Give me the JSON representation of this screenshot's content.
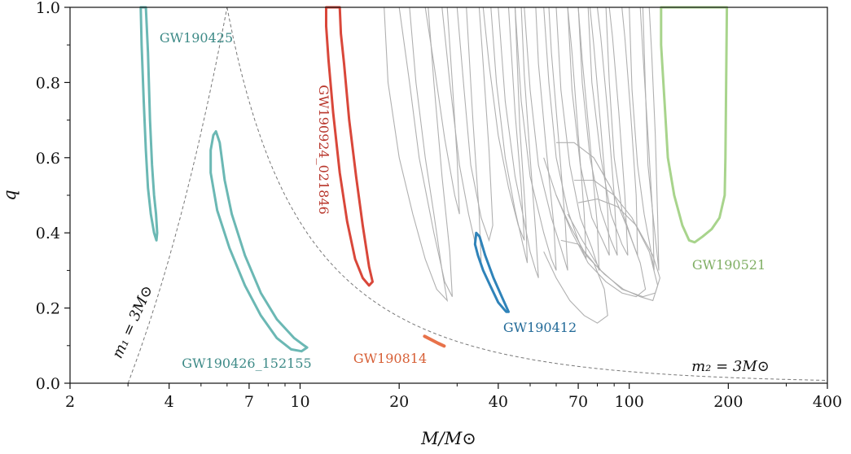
{
  "chart_data": {
    "type": "line",
    "title": "",
    "xlabel": "M/M⊙",
    "ylabel": "q",
    "xscale": "log",
    "xlim": [
      2,
      400
    ],
    "ylim": [
      0,
      1
    ],
    "xticks": [
      {
        "value": 2,
        "label": "2"
      },
      {
        "value": 4,
        "label": "4"
      },
      {
        "value": 7,
        "label": "7"
      },
      {
        "value": 10,
        "label": "10"
      },
      {
        "value": 20,
        "label": "20"
      },
      {
        "value": 40,
        "label": "40"
      },
      {
        "value": 70,
        "label": "70"
      },
      {
        "value": 100,
        "label": "100"
      },
      {
        "value": 200,
        "label": "200"
      },
      {
        "value": 400,
        "label": "400"
      }
    ],
    "yticks": [
      {
        "value": 0.0,
        "label": "0.0"
      },
      {
        "value": 0.2,
        "label": "0.2"
      },
      {
        "value": 0.4,
        "label": "0.4"
      },
      {
        "value": 0.6,
        "label": "0.6"
      },
      {
        "value": 0.8,
        "label": "0.8"
      },
      {
        "value": 1.0,
        "label": "1.0"
      }
    ],
    "bounds": [
      {
        "name": "m1",
        "label": "m₁ = 3M⊙",
        "mass_limit": 3
      },
      {
        "name": "m2",
        "label": "m₂ = 3M⊙",
        "mass_limit": 3
      }
    ],
    "highlighted": [
      {
        "label": "GW190425",
        "color": "#6bb8b4",
        "points": [
          [
            3.3,
            1.0
          ],
          [
            3.4,
            1.0
          ],
          [
            3.45,
            0.88
          ],
          [
            3.5,
            0.7
          ],
          [
            3.55,
            0.58
          ],
          [
            3.6,
            0.5
          ],
          [
            3.65,
            0.45
          ],
          [
            3.68,
            0.4
          ],
          [
            3.66,
            0.38
          ],
          [
            3.6,
            0.4
          ],
          [
            3.52,
            0.45
          ],
          [
            3.45,
            0.52
          ],
          [
            3.4,
            0.62
          ],
          [
            3.35,
            0.75
          ],
          [
            3.3,
            0.9
          ],
          [
            3.28,
            1.0
          ]
        ]
      },
      {
        "label": "GW190426_152155",
        "color": "#6bb8b4",
        "points": [
          [
            5.55,
            0.67
          ],
          [
            5.7,
            0.64
          ],
          [
            5.9,
            0.54
          ],
          [
            6.2,
            0.45
          ],
          [
            6.8,
            0.34
          ],
          [
            7.6,
            0.24
          ],
          [
            8.5,
            0.17
          ],
          [
            9.6,
            0.12
          ],
          [
            10.3,
            0.1
          ],
          [
            10.5,
            0.095
          ],
          [
            10.1,
            0.085
          ],
          [
            9.4,
            0.09
          ],
          [
            8.5,
            0.12
          ],
          [
            7.6,
            0.18
          ],
          [
            6.8,
            0.26
          ],
          [
            6.1,
            0.36
          ],
          [
            5.6,
            0.46
          ],
          [
            5.35,
            0.56
          ],
          [
            5.35,
            0.62
          ],
          [
            5.45,
            0.66
          ]
        ]
      },
      {
        "label": "GW190924_021846",
        "color": "#d9473a",
        "points": [
          [
            12.0,
            1.0
          ],
          [
            13.2,
            1.0
          ],
          [
            13.3,
            0.93
          ],
          [
            13.6,
            0.85
          ],
          [
            14.1,
            0.7
          ],
          [
            14.8,
            0.55
          ],
          [
            15.5,
            0.42
          ],
          [
            16.2,
            0.31
          ],
          [
            16.6,
            0.27
          ],
          [
            16.2,
            0.26
          ],
          [
            15.5,
            0.28
          ],
          [
            14.7,
            0.33
          ],
          [
            13.9,
            0.43
          ],
          [
            13.2,
            0.56
          ],
          [
            12.6,
            0.72
          ],
          [
            12.2,
            0.86
          ],
          [
            12.0,
            0.95
          ]
        ]
      },
      {
        "label": "GW190412",
        "color": "#2f83b9",
        "points": [
          [
            34.0,
            0.37
          ],
          [
            34.3,
            0.4
          ],
          [
            35.1,
            0.39
          ],
          [
            36.5,
            0.34
          ],
          [
            38.7,
            0.28
          ],
          [
            41.0,
            0.23
          ],
          [
            43.0,
            0.19
          ],
          [
            42.3,
            0.19
          ],
          [
            40.0,
            0.215
          ],
          [
            37.8,
            0.26
          ],
          [
            36.0,
            0.3
          ],
          [
            34.7,
            0.34
          ]
        ]
      },
      {
        "label": "GW190814",
        "color": "#e8724a",
        "points": [
          [
            23.9,
            0.125
          ],
          [
            25.0,
            0.116
          ],
          [
            26.3,
            0.106
          ],
          [
            27.4,
            0.099
          ]
        ]
      },
      {
        "label": "GW190521",
        "color": "#a8d48c",
        "points": [
          [
            125,
            1.0
          ],
          [
            198,
            1.0
          ],
          [
            197,
            0.8
          ],
          [
            196,
            0.6
          ],
          [
            195,
            0.5
          ],
          [
            188,
            0.44
          ],
          [
            178,
            0.41
          ],
          [
            167,
            0.39
          ],
          [
            158,
            0.375
          ],
          [
            152,
            0.38
          ],
          [
            145,
            0.42
          ],
          [
            137,
            0.5
          ],
          [
            131,
            0.6
          ],
          [
            128,
            0.75
          ],
          [
            125,
            0.9
          ]
        ]
      }
    ],
    "background_events": [
      [
        [
          18,
          1.0
        ],
        [
          18.5,
          0.8
        ],
        [
          20,
          0.6
        ],
        [
          22,
          0.45
        ],
        [
          24,
          0.33
        ],
        [
          26,
          0.25
        ],
        [
          28,
          0.22
        ],
        [
          27,
          0.3
        ],
        [
          25.5,
          0.45
        ],
        [
          24,
          0.6
        ],
        [
          22.5,
          0.8
        ],
        [
          21.5,
          1.0
        ]
      ],
      [
        [
          20,
          1.0
        ],
        [
          21.5,
          0.8
        ],
        [
          23,
          0.6
        ],
        [
          25.5,
          0.4
        ],
        [
          27.5,
          0.27
        ],
        [
          29,
          0.23
        ],
        [
          28.5,
          0.35
        ],
        [
          27,
          0.55
        ],
        [
          25.5,
          0.8
        ],
        [
          24.5,
          1.0
        ]
      ],
      [
        [
          24,
          1.0
        ],
        [
          25.5,
          0.85
        ],
        [
          27.5,
          0.65
        ],
        [
          29.5,
          0.5
        ],
        [
          30.5,
          0.45
        ],
        [
          30,
          0.6
        ],
        [
          29,
          0.8
        ],
        [
          28,
          1.0
        ]
      ],
      [
        [
          27,
          1.0
        ],
        [
          28.5,
          0.8
        ],
        [
          30.5,
          0.58
        ],
        [
          32.5,
          0.45
        ],
        [
          34.5,
          0.35
        ],
        [
          35.5,
          0.32
        ],
        [
          35,
          0.45
        ],
        [
          33.5,
          0.7
        ],
        [
          32,
          1.0
        ]
      ],
      [
        [
          30,
          1.0
        ],
        [
          31.5,
          0.78
        ],
        [
          33,
          0.58
        ],
        [
          35.5,
          0.44
        ],
        [
          37.5,
          0.38
        ],
        [
          38.5,
          0.42
        ],
        [
          37.5,
          0.62
        ],
        [
          36,
          0.85
        ],
        [
          35,
          1.0
        ]
      ],
      [
        [
          36,
          1.0
        ],
        [
          37.5,
          0.85
        ],
        [
          40,
          0.66
        ],
        [
          43,
          0.52
        ],
        [
          46,
          0.42
        ],
        [
          48,
          0.38
        ],
        [
          47,
          0.52
        ],
        [
          45,
          0.72
        ],
        [
          43,
          1.0
        ]
      ],
      [
        [
          38,
          1.0
        ],
        [
          39.5,
          0.8
        ],
        [
          42,
          0.6
        ],
        [
          45,
          0.46
        ],
        [
          47.5,
          0.37
        ],
        [
          49,
          0.32
        ],
        [
          48.5,
          0.44
        ],
        [
          46.5,
          0.68
        ],
        [
          45,
          1.0
        ]
      ],
      [
        [
          40,
          1.0
        ],
        [
          42,
          0.75
        ],
        [
          45,
          0.55
        ],
        [
          48,
          0.43
        ],
        [
          50,
          0.35
        ],
        [
          52,
          0.3
        ],
        [
          53,
          0.28
        ],
        [
          52,
          0.4
        ],
        [
          50,
          0.6
        ],
        [
          48,
          0.82
        ],
        [
          47,
          1.0
        ]
      ],
      [
        [
          45,
          1.0
        ],
        [
          47,
          0.75
        ],
        [
          50,
          0.55
        ],
        [
          55,
          0.4
        ],
        [
          58,
          0.33
        ],
        [
          60,
          0.3
        ],
        [
          59,
          0.42
        ],
        [
          56,
          0.62
        ],
        [
          53,
          0.85
        ],
        [
          52,
          1.0
        ]
      ],
      [
        [
          48,
          1.0
        ],
        [
          50,
          0.78
        ],
        [
          53,
          0.58
        ],
        [
          58,
          0.44
        ],
        [
          62,
          0.36
        ],
        [
          65,
          0.3
        ],
        [
          64,
          0.42
        ],
        [
          61,
          0.65
        ],
        [
          58,
          0.88
        ],
        [
          57,
          1.0
        ]
      ],
      [
        [
          55,
          1.0
        ],
        [
          57,
          0.8
        ],
        [
          60,
          0.6
        ],
        [
          65,
          0.46
        ],
        [
          70,
          0.38
        ],
        [
          74,
          0.33
        ],
        [
          73,
          0.45
        ],
        [
          70,
          0.66
        ],
        [
          67,
          0.88
        ],
        [
          65,
          1.0
        ]
      ],
      [
        [
          60,
          1.0
        ],
        [
          62,
          0.78
        ],
        [
          66,
          0.58
        ],
        [
          71,
          0.44
        ],
        [
          77,
          0.36
        ],
        [
          81,
          0.3
        ],
        [
          80,
          0.42
        ],
        [
          76,
          0.64
        ],
        [
          72,
          0.86
        ],
        [
          70,
          1.0
        ]
      ],
      [
        [
          65,
          1.0
        ],
        [
          67,
          0.78
        ],
        [
          71,
          0.58
        ],
        [
          77,
          0.44
        ],
        [
          83,
          0.38
        ],
        [
          87,
          0.34
        ],
        [
          86,
          0.46
        ],
        [
          82,
          0.68
        ],
        [
          78,
          0.9
        ],
        [
          76,
          1.0
        ]
      ],
      [
        [
          70,
          1.0
        ],
        [
          72,
          0.8
        ],
        [
          76,
          0.6
        ],
        [
          82,
          0.46
        ],
        [
          88,
          0.38
        ],
        [
          92,
          0.34
        ],
        [
          90,
          0.5
        ],
        [
          86,
          0.72
        ],
        [
          82,
          0.92
        ],
        [
          80,
          1.0
        ]
      ],
      [
        [
          75,
          1.0
        ],
        [
          77,
          0.8
        ],
        [
          82,
          0.6
        ],
        [
          88,
          0.45
        ],
        [
          95,
          0.37
        ],
        [
          99,
          0.34
        ],
        [
          97,
          0.5
        ],
        [
          93,
          0.72
        ],
        [
          89,
          0.92
        ],
        [
          87,
          1.0
        ]
      ],
      [
        [
          55,
          0.6
        ],
        [
          60,
          0.5
        ],
        [
          67,
          0.4
        ],
        [
          75,
          0.32
        ],
        [
          85,
          0.27
        ],
        [
          95,
          0.24
        ],
        [
          105,
          0.23
        ],
        [
          112,
          0.25
        ],
        [
          108,
          0.32
        ],
        [
          98,
          0.42
        ],
        [
          88,
          0.52
        ],
        [
          78,
          0.6
        ],
        [
          68,
          0.64
        ],
        [
          60,
          0.64
        ]
      ],
      [
        [
          60,
          0.5
        ],
        [
          66,
          0.42
        ],
        [
          74,
          0.34
        ],
        [
          84,
          0.29
        ],
        [
          96,
          0.25
        ],
        [
          108,
          0.23
        ],
        [
          118,
          0.22
        ],
        [
          122,
          0.26
        ],
        [
          115,
          0.35
        ],
        [
          102,
          0.44
        ],
        [
          90,
          0.5
        ],
        [
          78,
          0.54
        ],
        [
          68,
          0.54
        ]
      ],
      [
        [
          65,
          0.45
        ],
        [
          72,
          0.38
        ],
        [
          82,
          0.3
        ],
        [
          95,
          0.25
        ],
        [
          110,
          0.23
        ],
        [
          120,
          0.24
        ],
        [
          124,
          0.28
        ],
        [
          118,
          0.34
        ],
        [
          105,
          0.42
        ],
        [
          92,
          0.47
        ],
        [
          80,
          0.49
        ],
        [
          70,
          0.48
        ]
      ],
      [
        [
          55,
          0.35
        ],
        [
          60,
          0.28
        ],
        [
          66,
          0.22
        ],
        [
          73,
          0.18
        ],
        [
          80,
          0.16
        ],
        [
          86,
          0.18
        ],
        [
          84,
          0.25
        ],
        [
          78,
          0.32
        ],
        [
          70,
          0.37
        ],
        [
          62,
          0.38
        ]
      ],
      [
        [
          100,
          1.0
        ],
        [
          102,
          0.78
        ],
        [
          106,
          0.58
        ],
        [
          111,
          0.45
        ],
        [
          116,
          0.36
        ],
        [
          119,
          0.3
        ],
        [
          118,
          0.44
        ],
        [
          114,
          0.66
        ],
        [
          110,
          0.88
        ],
        [
          108,
          1.0
        ]
      ],
      [
        [
          110,
          1.0
        ],
        [
          112,
          0.78
        ],
        [
          114,
          0.58
        ],
        [
          118,
          0.45
        ],
        [
          121,
          0.36
        ],
        [
          123,
          0.3
        ],
        [
          122,
          0.44
        ],
        [
          120,
          0.66
        ],
        [
          117,
          0.88
        ],
        [
          115,
          1.0
        ]
      ],
      [
        [
          85,
          1.0
        ],
        [
          87,
          0.8
        ],
        [
          90,
          0.6
        ],
        [
          95,
          0.46
        ],
        [
          102,
          0.38
        ],
        [
          106,
          0.34
        ],
        [
          105,
          0.5
        ],
        [
          101,
          0.72
        ],
        [
          97,
          0.92
        ],
        [
          95,
          1.0
        ]
      ]
    ]
  }
}
